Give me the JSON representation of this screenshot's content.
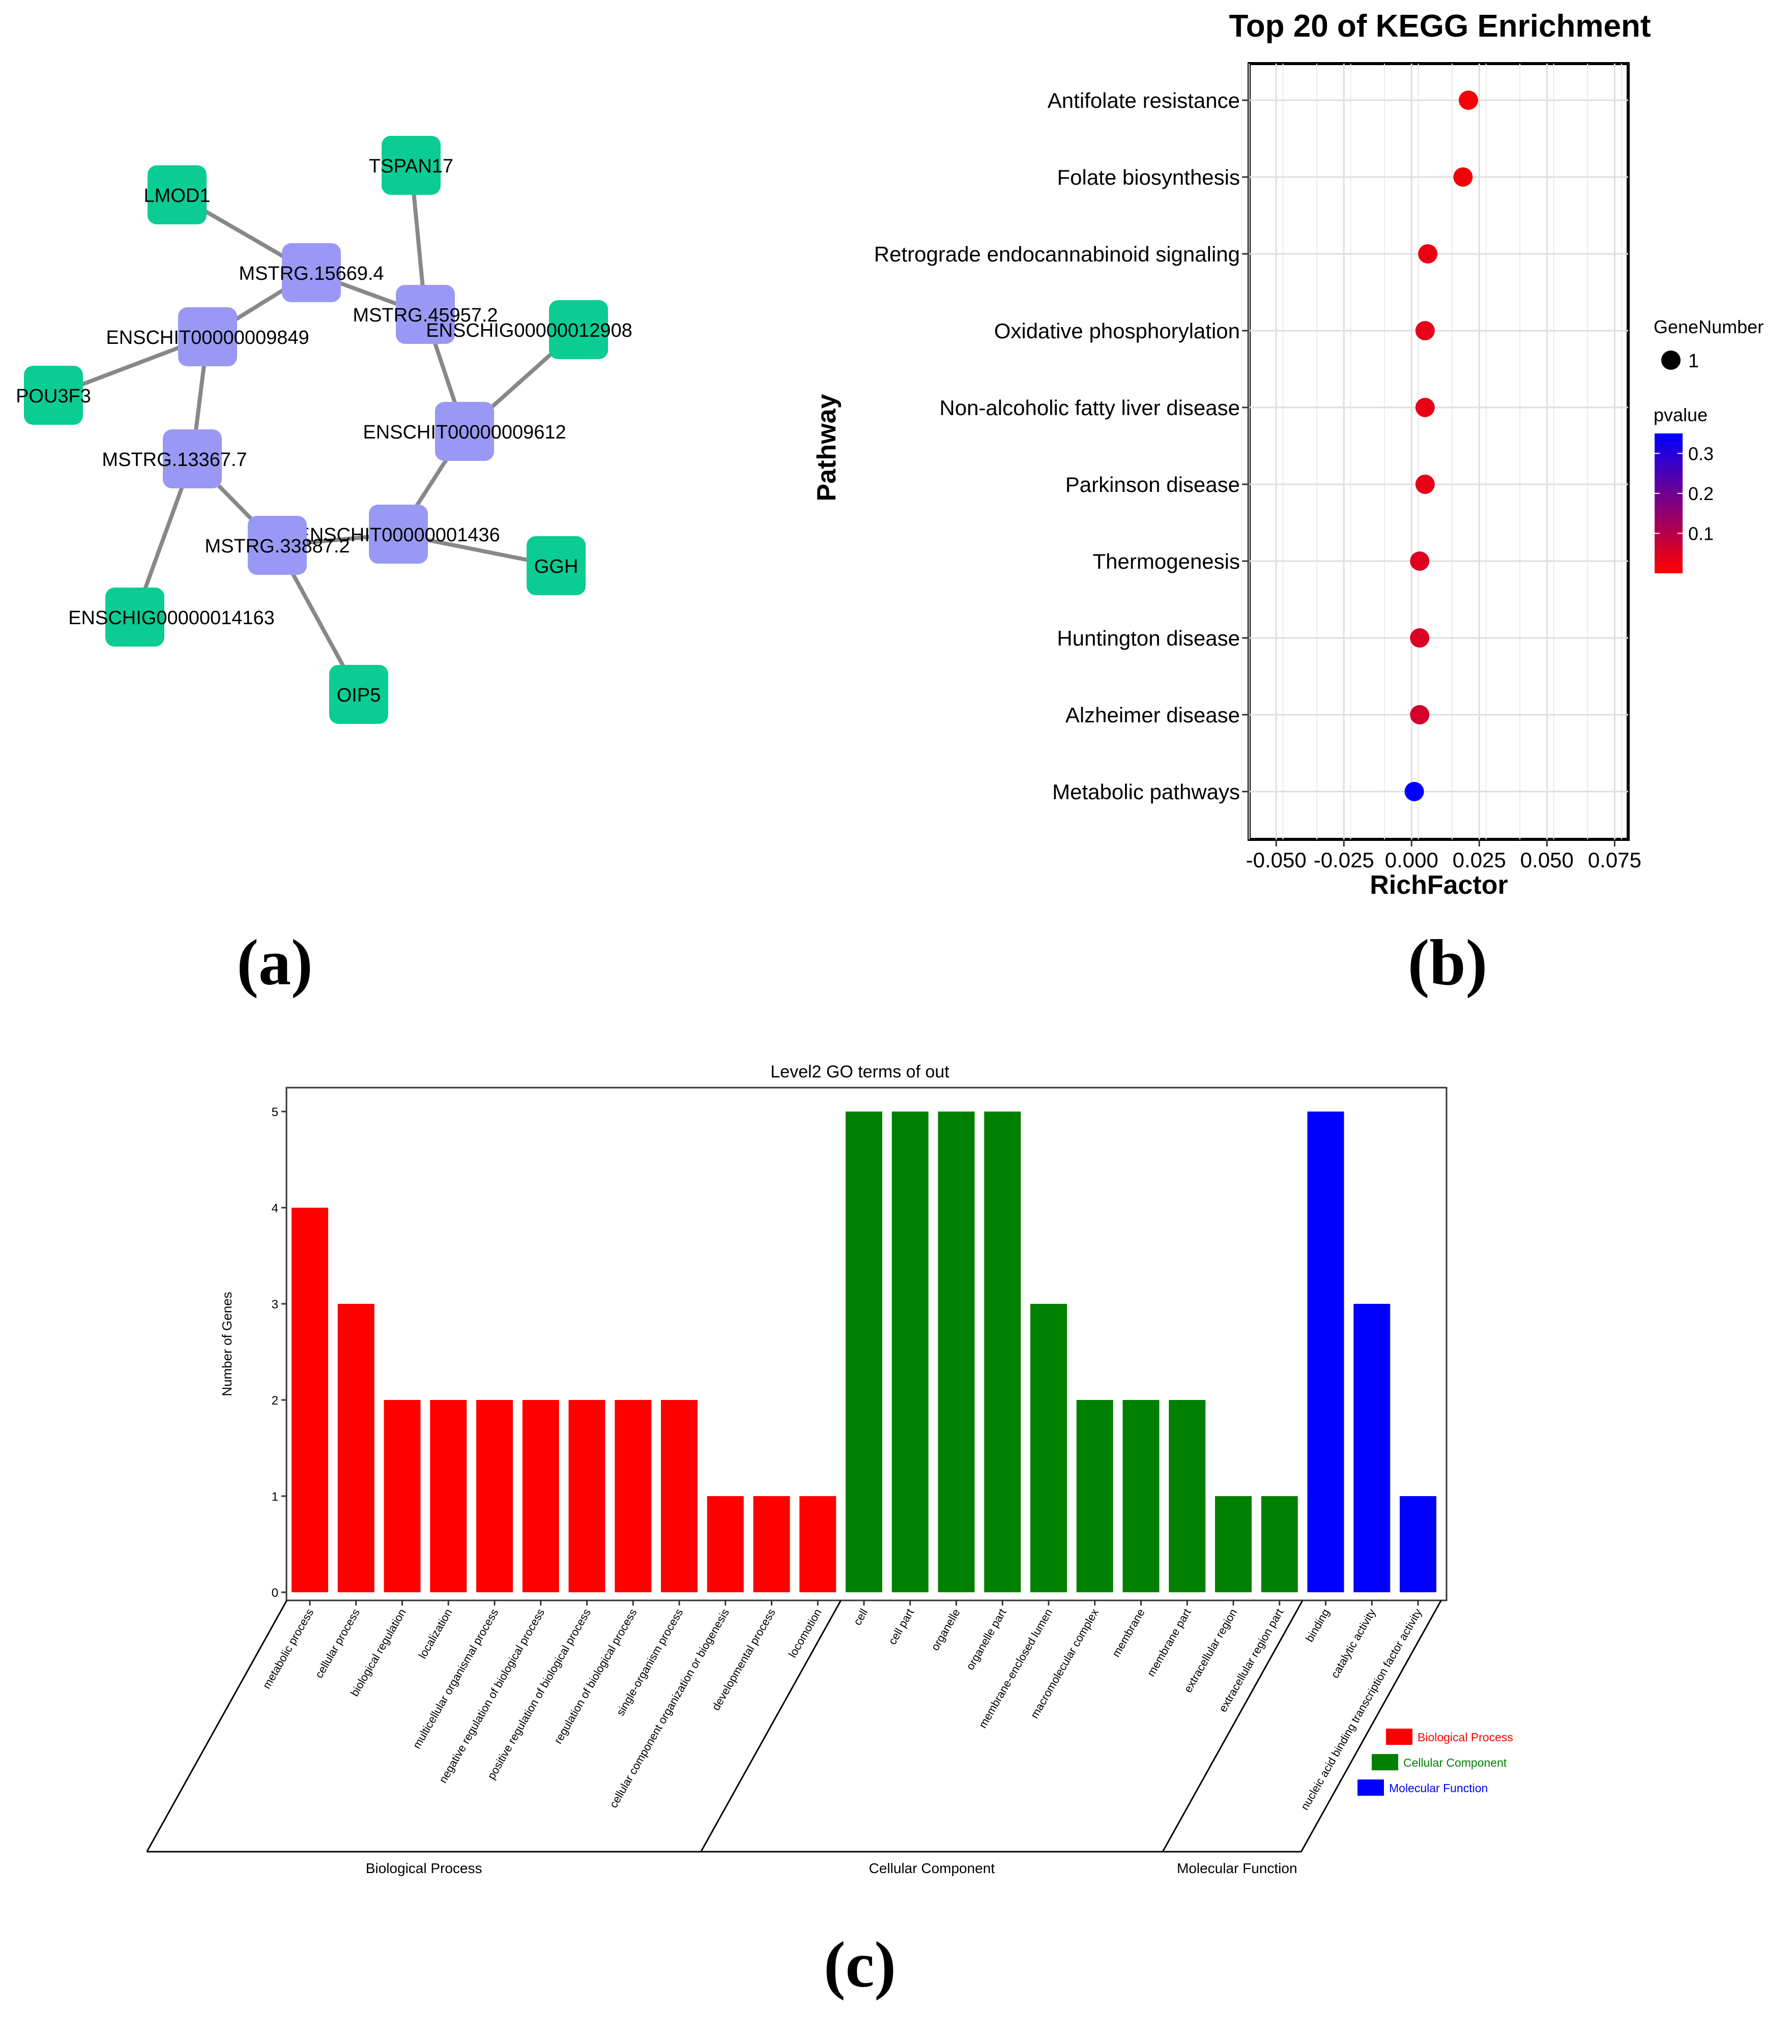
{
  "panels": {
    "a": {
      "label": "(a)"
    },
    "b": {
      "label": "(b)"
    },
    "c": {
      "label": "(c)"
    }
  },
  "network": {
    "colors": {
      "lncrna": "#9999f5",
      "gene": "#0bcc92",
      "edge": "#888888"
    },
    "nodes": [
      {
        "id": "LMOD1",
        "type": "gene"
      },
      {
        "id": "TSPAN17",
        "type": "gene"
      },
      {
        "id": "MSTRG.15669.4",
        "type": "lncrna"
      },
      {
        "id": "MSTRG.45957.2",
        "type": "lncrna"
      },
      {
        "id": "ENSCHIG00000012908",
        "type": "gene"
      },
      {
        "id": "ENSCHIT00000009849",
        "type": "lncrna"
      },
      {
        "id": "POU3F3",
        "type": "gene"
      },
      {
        "id": "ENSCHIT00000009612",
        "type": "lncrna"
      },
      {
        "id": "MSTRG.13367.7",
        "type": "lncrna"
      },
      {
        "id": "ENSCHIT00000001436",
        "type": "lncrna"
      },
      {
        "id": "MSTRG.33887.2",
        "type": "lncrna"
      },
      {
        "id": "GGH",
        "type": "gene"
      },
      {
        "id": "ENSCHIG00000014163",
        "type": "gene"
      },
      {
        "id": "OIP5",
        "type": "gene"
      }
    ],
    "edges": [
      [
        "LMOD1",
        "MSTRG.15669.4"
      ],
      [
        "MSTRG.15669.4",
        "MSTRG.45957.2"
      ],
      [
        "MSTRG.15669.4",
        "ENSCHIT00000009849"
      ],
      [
        "TSPAN17",
        "MSTRG.45957.2"
      ],
      [
        "MSTRG.45957.2",
        "ENSCHIT00000009612"
      ],
      [
        "ENSCHIG00000012908",
        "ENSCHIT00000009612"
      ],
      [
        "ENSCHIT00000009612",
        "ENSCHIT00000001436"
      ],
      [
        "ENSCHIT00000009849",
        "POU3F3"
      ],
      [
        "ENSCHIT00000009849",
        "MSTRG.13367.7"
      ],
      [
        "MSTRG.13367.7",
        "MSTRG.33887.2"
      ],
      [
        "MSTRG.13367.7",
        "ENSCHIG00000014163"
      ],
      [
        "MSTRG.33887.2",
        "ENSCHIT00000001436"
      ],
      [
        "MSTRG.33887.2",
        "OIP5"
      ],
      [
        "ENSCHIT00000001436",
        "GGH"
      ]
    ]
  },
  "chart_data": [
    {
      "type": "scatter",
      "title": "Top 20 of KEGG Enrichment",
      "xlabel": "RichFactor",
      "ylabel": "Pathway",
      "xlim": [
        -0.06,
        0.08
      ],
      "xticks": [
        -0.05,
        -0.025,
        0.0,
        0.025,
        0.05,
        0.075
      ],
      "xtick_labels": [
        "-0.050",
        "-0.025",
        "0.000",
        "0.025",
        "0.050",
        "0.075"
      ],
      "grid": true,
      "categories": [
        "Antifolate resistance",
        "Folate biosynthesis",
        "Retrograde endocannabinoid signaling",
        "Oxidative phosphorylation",
        "Non-alcoholic fatty liver disease",
        "Parkinson disease",
        "Thermogenesis",
        "Huntington disease",
        "Alzheimer disease",
        "Metabolic pathways"
      ],
      "values": [
        0.021,
        0.019,
        0.006,
        0.005,
        0.005,
        0.005,
        0.003,
        0.003,
        0.003,
        0.001
      ],
      "pvalues": [
        0.01,
        0.015,
        0.025,
        0.03,
        0.03,
        0.03,
        0.045,
        0.05,
        0.06,
        0.35
      ],
      "gene_number": [
        1,
        1,
        1,
        1,
        1,
        1,
        1,
        1,
        1,
        1
      ],
      "size_legend": {
        "title": "GeneNumber",
        "label": "1"
      },
      "color_legend": {
        "title": "pvalue",
        "ticks": [
          0.3,
          0.2,
          0.1
        ],
        "tick_labels": [
          "0.3",
          "0.2",
          "0.1"
        ],
        "range": [
          0.0,
          0.35
        ],
        "low_color": "#ff0000",
        "high_color": "#0000ff"
      },
      "legend_position": "right"
    },
    {
      "type": "bar",
      "title": "Level2 GO terms of out",
      "ylabel": "Number of Genes",
      "ylim": [
        0,
        5.3
      ],
      "yticks": [
        0,
        1,
        2,
        3,
        4,
        5
      ],
      "categories": [
        "metabolic process",
        "cellular process",
        "biological regulation",
        "localization",
        "multicellular organismal process",
        "negative regulation of biological process",
        "positive regulation of biological process",
        "regulation of biological process",
        "single-organism process",
        "cellular component organization or biogenesis",
        "developmental process",
        "locomotion",
        "cell",
        "cell part",
        "organelle",
        "organelle part",
        "membrane-enclosed lumen",
        "macromolecular complex",
        "membrane",
        "membrane part",
        "extracellular region",
        "extracellular region part",
        "binding",
        "catalytic activity",
        "nucleic acid binding transcription factor activity"
      ],
      "values": [
        4,
        3,
        2,
        2,
        2,
        2,
        2,
        2,
        2,
        1,
        1,
        1,
        5,
        5,
        5,
        5,
        3,
        2,
        2,
        2,
        1,
        1,
        5,
        3,
        1
      ],
      "groups": [
        {
          "name": "Biological Process",
          "count": 12,
          "color": "#ff0000"
        },
        {
          "name": "Cellular Component",
          "count": 10,
          "color": "#008000"
        },
        {
          "name": "Molecular Function",
          "count": 3,
          "color": "#0000ff"
        }
      ],
      "legend_position": "bottom-right"
    }
  ]
}
